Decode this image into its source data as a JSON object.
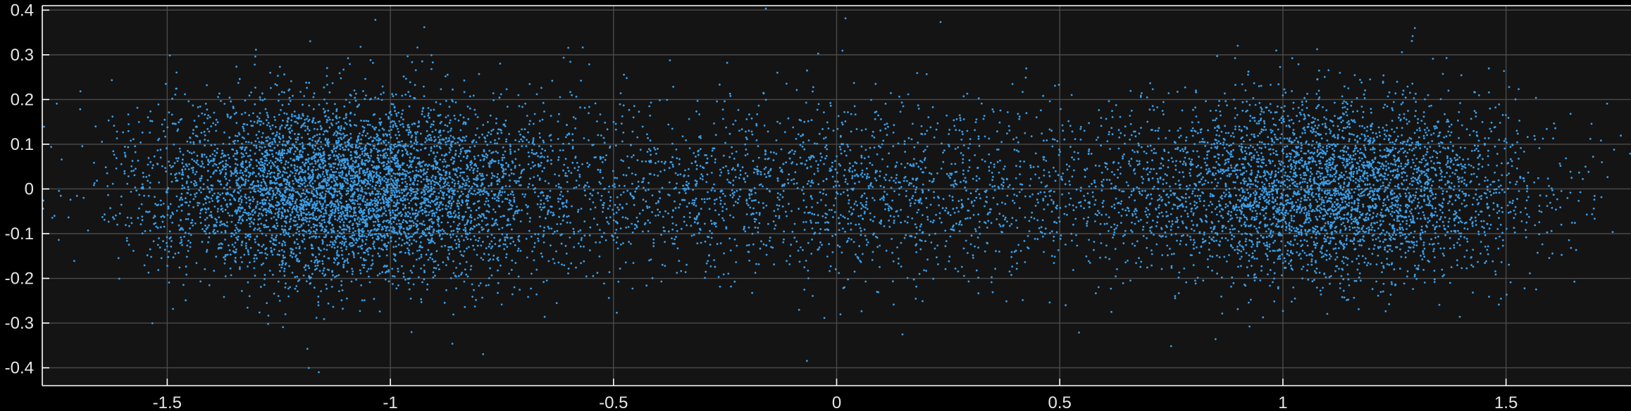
{
  "chart_data": {
    "type": "scatter",
    "title": "",
    "xlabel": "",
    "ylabel": "",
    "xlim": [
      -1.78,
      1.78
    ],
    "ylim": [
      -0.44,
      0.41
    ],
    "grid": true,
    "background_color": "#141414",
    "figure_color": "#000000",
    "point_color": "#3a9ee8",
    "x_ticks": [
      -1.5,
      -1,
      -0.5,
      0,
      0.5,
      1,
      1.5
    ],
    "y_ticks": [
      -0.4,
      -0.3,
      -0.2,
      -0.1,
      0,
      0.1,
      0.2,
      0.3,
      0.4
    ],
    "x_tick_labels": [
      "-1.5",
      "-1",
      "-0.5",
      "0",
      "0.5",
      "1",
      "1.5"
    ],
    "y_tick_labels": [
      "-0.4",
      "-0.3",
      "-0.2",
      "-0.1",
      "0",
      "0.1",
      "0.2",
      "0.3",
      "0.4"
    ],
    "series": [
      {
        "clusters": [
          {
            "center_x": -1.1,
            "spread_x": 0.22,
            "center_y": 0.0,
            "spread_y": 0.1,
            "count": 5200
          },
          {
            "center_x": 1.1,
            "spread_x": 0.22,
            "center_y": 0.0,
            "spread_y": 0.1,
            "count": 3800
          },
          {
            "center_x": 0.0,
            "spread_x": 0.55,
            "center_y": 0.0,
            "spread_y": 0.1,
            "count": 2600
          }
        ]
      }
    ]
  }
}
